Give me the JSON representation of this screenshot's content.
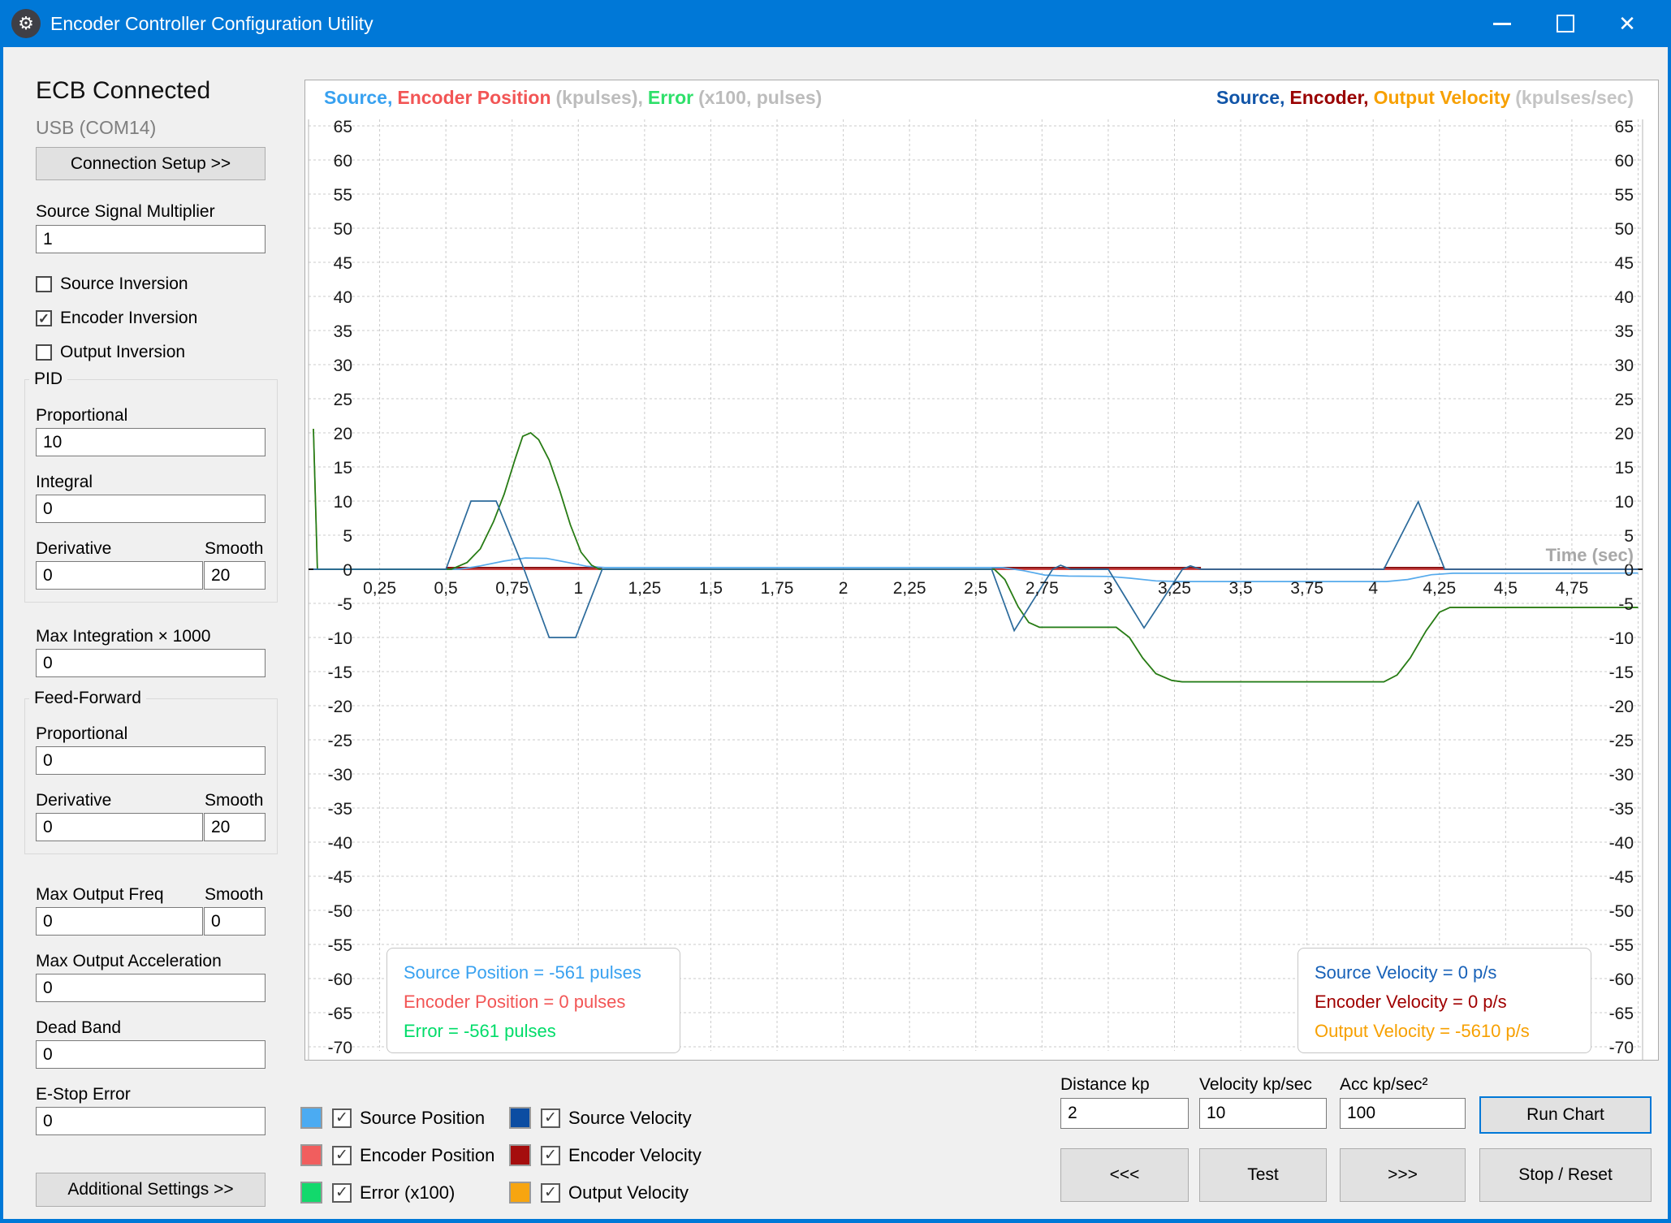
{
  "window": {
    "title": "Encoder Controller Configuration Utility",
    "icon": "gear"
  },
  "sidebar": {
    "status_heading": "ECB Connected",
    "connection": "USB (COM14)",
    "connection_setup_button": "Connection Setup >>",
    "source_signal_multiplier": {
      "label": "Source Signal Multiplier",
      "value": "1"
    },
    "inversion": {
      "source": {
        "label": "Source Inversion",
        "checked": false
      },
      "encoder": {
        "label": "Encoder Inversion",
        "checked": true
      },
      "output": {
        "label": "Output Inversion",
        "checked": false
      }
    },
    "pid": {
      "title": "PID",
      "proportional": {
        "label": "Proportional",
        "value": "10"
      },
      "integral": {
        "label": "Integral",
        "value": "0"
      },
      "derivative": {
        "label": "Derivative",
        "value": "0"
      },
      "smooth": {
        "label": "Smooth",
        "value": "20"
      }
    },
    "max_integration": {
      "label": "Max Integration × 1000",
      "value": "0"
    },
    "feed_forward": {
      "title": "Feed-Forward",
      "proportional": {
        "label": "Proportional",
        "value": "0"
      },
      "derivative": {
        "label": "Derivative",
        "value": "0"
      },
      "smooth": {
        "label": "Smooth",
        "value": "20"
      }
    },
    "max_output_freq": {
      "label": "Max Output Freq",
      "value": "0"
    },
    "max_output_freq_smooth": {
      "label": "Smooth",
      "value": "0"
    },
    "max_output_acceleration": {
      "label": "Max Output Acceleration",
      "value": "0"
    },
    "dead_band": {
      "label": "Dead Band",
      "value": "0"
    },
    "e_stop_error": {
      "label": "E-Stop Error",
      "value": "0"
    },
    "additional_settings_button": "Additional Settings >>"
  },
  "chart": {
    "left_title_parts": [
      {
        "text": "Source,",
        "color": "#38a1f0"
      },
      {
        "text": "Encoder Position",
        "color": "#f25555"
      },
      {
        "text": "(kpulses),",
        "color": "#bcbcbc"
      },
      {
        "text": "Error",
        "color": "#2ee06a"
      },
      {
        "text": "(x100, pulses)",
        "color": "#bcbcbc"
      }
    ],
    "right_title_parts": [
      {
        "text": "Source,",
        "color": "#1155a8"
      },
      {
        "text": "Encoder,",
        "color": "#990000"
      },
      {
        "text": "Output Velocity",
        "color": "#f7a000"
      },
      {
        "text": "(kpulses/sec)",
        "color": "#c4c4c4"
      }
    ],
    "time_label": "Time (sec)",
    "info_left": [
      {
        "text": "Source Position = -561 pulses",
        "color": "#38a1f0"
      },
      {
        "text": "Encoder Position = 0 pulses",
        "color": "#f25555"
      },
      {
        "text": "Error = -561 pulses",
        "color": "#00dc69"
      }
    ],
    "info_right": [
      {
        "text": "Source Velocity = 0 p/s",
        "color": "#1761b8"
      },
      {
        "text": "Encoder Velocity = 0 p/s",
        "color": "#a00000"
      },
      {
        "text": "Output Velocity = -5610 p/s",
        "color": "#f7a000"
      }
    ]
  },
  "chart_data": {
    "type": "line",
    "title": "",
    "xlabel": "Time (sec)",
    "x_range": [
      0,
      5.0
    ],
    "x_tick_step": 0.25,
    "x_labeled_ticks_to": 4.75,
    "y_range": [
      -70,
      65
    ],
    "y_tick_step": 5,
    "grid": true,
    "series": [
      {
        "name": "Output Velocity (kpulses/sec)",
        "color": "#f7a000",
        "points": [
          [
            0,
            20.6
          ],
          [
            0.015,
            0
          ],
          [
            0.52,
            0
          ],
          [
            0.58,
            1
          ],
          [
            0.63,
            3
          ],
          [
            0.68,
            7
          ],
          [
            0.72,
            11
          ],
          [
            0.76,
            16
          ],
          [
            0.79,
            19.5
          ],
          [
            0.82,
            20
          ],
          [
            0.85,
            19
          ],
          [
            0.89,
            16
          ],
          [
            0.93,
            11.5
          ],
          [
            0.97,
            6.5
          ],
          [
            1.01,
            2.5
          ],
          [
            1.05,
            0.6
          ],
          [
            1.08,
            0
          ],
          [
            2.57,
            0
          ],
          [
            2.61,
            -1.5
          ],
          [
            2.66,
            -5.5
          ],
          [
            2.7,
            -7.8
          ],
          [
            2.74,
            -8.5
          ],
          [
            3.03,
            -8.5
          ],
          [
            3.08,
            -10
          ],
          [
            3.13,
            -13
          ],
          [
            3.18,
            -15.3
          ],
          [
            3.24,
            -16.3
          ],
          [
            3.28,
            -16.5
          ],
          [
            4.04,
            -16.5
          ],
          [
            4.09,
            -15.5
          ],
          [
            4.14,
            -13
          ],
          [
            4.2,
            -9
          ],
          [
            4.25,
            -6.3
          ],
          [
            4.29,
            -5.6
          ],
          [
            5,
            -5.6
          ]
        ]
      },
      {
        "name": "Encoder Position (kpulses)",
        "color": "#e84c4c",
        "points": [
          [
            0,
            0
          ],
          [
            5,
            0
          ]
        ]
      },
      {
        "name": "Source Position (kpulses)",
        "color": "#55aaec",
        "points": [
          [
            0,
            0
          ],
          [
            0.55,
            0
          ],
          [
            0.63,
            0.5
          ],
          [
            0.72,
            1.2
          ],
          [
            0.8,
            1.65
          ],
          [
            0.88,
            1.6
          ],
          [
            0.96,
            1.0
          ],
          [
            1.03,
            0.45
          ],
          [
            1.1,
            0.25
          ],
          [
            2.6,
            0.25
          ],
          [
            2.68,
            -0.2
          ],
          [
            2.76,
            -0.85
          ],
          [
            2.85,
            -1.0
          ],
          [
            3.0,
            -1.05
          ],
          [
            3.08,
            -1.3
          ],
          [
            3.18,
            -1.7
          ],
          [
            3.27,
            -1.8
          ],
          [
            4.05,
            -1.8
          ],
          [
            4.13,
            -1.5
          ],
          [
            4.22,
            -0.8
          ],
          [
            4.3,
            -0.58
          ],
          [
            5,
            -0.56
          ]
        ]
      },
      {
        "name": "Error x100 (pulses)",
        "color": "#1e7d1e",
        "points": [
          [
            0,
            20.6
          ],
          [
            0.015,
            0
          ],
          [
            0.52,
            0
          ],
          [
            0.58,
            1
          ],
          [
            0.63,
            3
          ],
          [
            0.68,
            7
          ],
          [
            0.72,
            11
          ],
          [
            0.76,
            16
          ],
          [
            0.79,
            19.5
          ],
          [
            0.82,
            20
          ],
          [
            0.85,
            19
          ],
          [
            0.89,
            16
          ],
          [
            0.93,
            11.5
          ],
          [
            0.97,
            6.5
          ],
          [
            1.01,
            2.5
          ],
          [
            1.05,
            0.6
          ],
          [
            1.08,
            0
          ],
          [
            2.57,
            0
          ],
          [
            2.61,
            -1.5
          ],
          [
            2.66,
            -5.5
          ],
          [
            2.7,
            -7.8
          ],
          [
            2.74,
            -8.5
          ],
          [
            3.03,
            -8.5
          ],
          [
            3.08,
            -10
          ],
          [
            3.13,
            -13
          ],
          [
            3.18,
            -15.3
          ],
          [
            3.24,
            -16.3
          ],
          [
            3.28,
            -16.5
          ],
          [
            4.04,
            -16.5
          ],
          [
            4.09,
            -15.5
          ],
          [
            4.14,
            -13
          ],
          [
            4.2,
            -9
          ],
          [
            4.25,
            -6.3
          ],
          [
            4.29,
            -5.6
          ],
          [
            5,
            -5.6
          ]
        ]
      },
      {
        "name": "Source Velocity (kpulses/sec)",
        "color": "#2b6a9b",
        "points": [
          [
            0,
            0
          ],
          [
            0.5,
            0
          ],
          [
            0.595,
            10
          ],
          [
            0.69,
            10
          ],
          [
            0.795,
            0
          ],
          [
            0.89,
            -10
          ],
          [
            0.99,
            -10
          ],
          [
            1.09,
            0
          ],
          [
            2.56,
            0
          ],
          [
            2.645,
            -9
          ],
          [
            2.79,
            0
          ],
          [
            2.82,
            0.6
          ],
          [
            2.86,
            0
          ],
          [
            3.0,
            0
          ],
          [
            3.135,
            -8.6
          ],
          [
            3.28,
            0
          ],
          [
            3.31,
            0.5
          ],
          [
            3.35,
            0
          ],
          [
            4.04,
            0
          ],
          [
            4.17,
            9.9
          ],
          [
            4.27,
            0
          ],
          [
            5,
            0
          ]
        ]
      }
    ],
    "encoder_velocity_zero_segments": {
      "color": "#8b1515",
      "spans": [
        [
          0.5,
          1.09
        ],
        [
          2.56,
          3.35
        ],
        [
          4.04,
          4.27
        ]
      ]
    },
    "readouts": {
      "source_position_pulses": -561,
      "encoder_position_pulses": 0,
      "error_pulses": -561,
      "source_velocity_ps": 0,
      "encoder_velocity_ps": 0,
      "output_velocity_ps": -5610
    }
  },
  "legend": {
    "columns": [
      [
        {
          "label": "Source Position",
          "color": "#4babf2",
          "checked": true
        },
        {
          "label": "Encoder Position",
          "color": "#f15e5e",
          "checked": true
        },
        {
          "label": "Error (x100)",
          "color": "#12d96c",
          "checked": true
        }
      ],
      [
        {
          "label": "Source Velocity",
          "color": "#0c4da2",
          "checked": true
        },
        {
          "label": "Encoder Velocity",
          "color": "#a50d0d",
          "checked": true
        },
        {
          "label": "Output Velocity",
          "color": "#f7a510",
          "checked": true
        }
      ]
    ]
  },
  "controls": {
    "distance": {
      "label": "Distance kp",
      "value": "2"
    },
    "velocity": {
      "label": "Velocity kp/sec",
      "value": "10"
    },
    "acc": {
      "label": "Acc  kp/sec²",
      "value": "100"
    },
    "run_chart": "Run Chart",
    "back": "<<<",
    "test": "Test",
    "forward": ">>>",
    "stop_reset": "Stop / Reset"
  }
}
